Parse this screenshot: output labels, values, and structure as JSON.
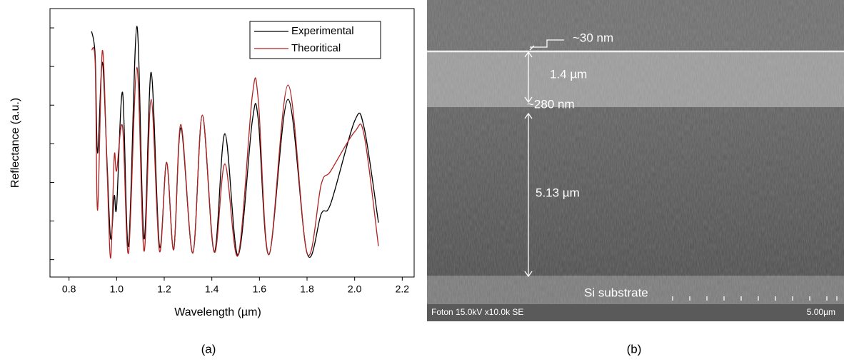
{
  "chart_data": {
    "type": "line",
    "xlabel": "Wavelength (µm)",
    "ylabel": "Reflectance (a.u.)",
    "x": [
      0.895,
      0.91,
      0.92,
      0.94,
      0.96,
      0.975,
      0.99,
      1.0,
      1.025,
      1.05,
      1.085,
      1.115,
      1.145,
      1.18,
      1.21,
      1.24,
      1.27,
      1.32,
      1.36,
      1.41,
      1.455,
      1.51,
      1.57,
      1.595,
      1.64,
      1.72,
      1.8,
      1.86,
      1.9,
      2.0,
      2.04,
      2.1
    ],
    "series": [
      {
        "name": "Experimental",
        "color": "#000000",
        "values": [
          6.91,
          6.26,
          3.76,
          6.11,
          3.48,
          1.54,
          2.65,
          2.37,
          5.33,
          1.35,
          7.04,
          1.54,
          5.85,
          1.35,
          3.52,
          1.26,
          4.41,
          1.17,
          4.74,
          1.2,
          4.26,
          1.11,
          4.59,
          4.63,
          1.13,
          5.15,
          1.17,
          2.19,
          2.46,
          4.59,
          4.41,
          1.96
        ]
      },
      {
        "name": "Theoritical",
        "color": "#b22222",
        "values": [
          6.44,
          6.07,
          2.28,
          6.41,
          3.3,
          1.04,
          3.67,
          3.3,
          4.44,
          1.17,
          5.98,
          1.22,
          5.15,
          1.22,
          3.52,
          1.26,
          4.5,
          1.17,
          4.74,
          1.2,
          3.48,
          1.11,
          5.24,
          5.15,
          1.13,
          5.52,
          1.17,
          2.96,
          3.3,
          4.31,
          4.22,
          1.35
        ]
      }
    ],
    "xlim": [
      0.72,
      2.25
    ],
    "ylim": [
      0.55,
      7.5
    ],
    "xticks": [
      0.8,
      {
        "value": 1,
        "label": "1.0"
      },
      1.2,
      1.4,
      1.6,
      1.8,
      {
        "value": 2,
        "label": "2.0"
      },
      2.2
    ],
    "yticks": [
      1,
      2,
      3,
      4,
      5,
      6,
      7
    ],
    "ytick_labels": false,
    "legend": "upper right"
  },
  "sem_image": {
    "annotations": {
      "top_layer": "~30 nm",
      "upper_thickness": "1.4 µm",
      "interface": "~280 nm",
      "lower_thickness": "5.13 µm",
      "substrate": "Si substrate"
    },
    "info": "Foton 15.0kV x10.0k SE",
    "scale_bar": "5.00µm"
  },
  "captions": [
    "(a)",
    "(b)"
  ]
}
